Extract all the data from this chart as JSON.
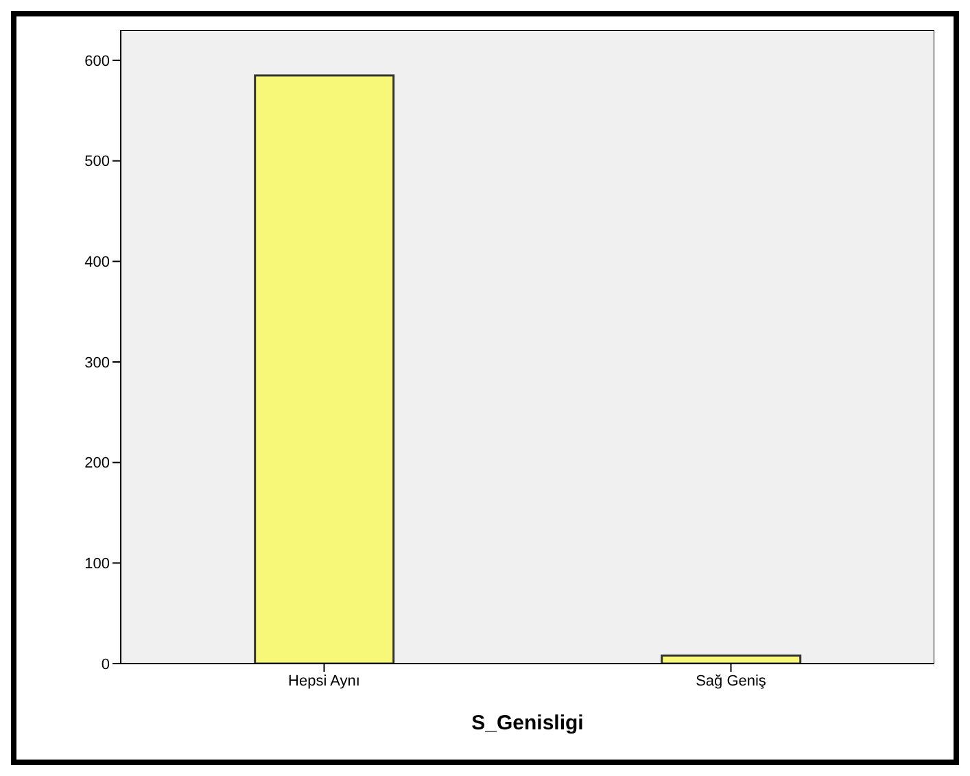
{
  "chart_data": {
    "type": "bar",
    "xlabel": "S_Genisligi",
    "categories": [
      "Hepsi Aynı",
      "Sağ Geniş"
    ],
    "values": [
      585,
      8
    ],
    "color": "#f8f878",
    "ylim": [
      0,
      630
    ],
    "yticks": [
      0,
      100,
      200,
      300,
      400,
      500,
      600
    ],
    "grid": false,
    "legend": false
  }
}
